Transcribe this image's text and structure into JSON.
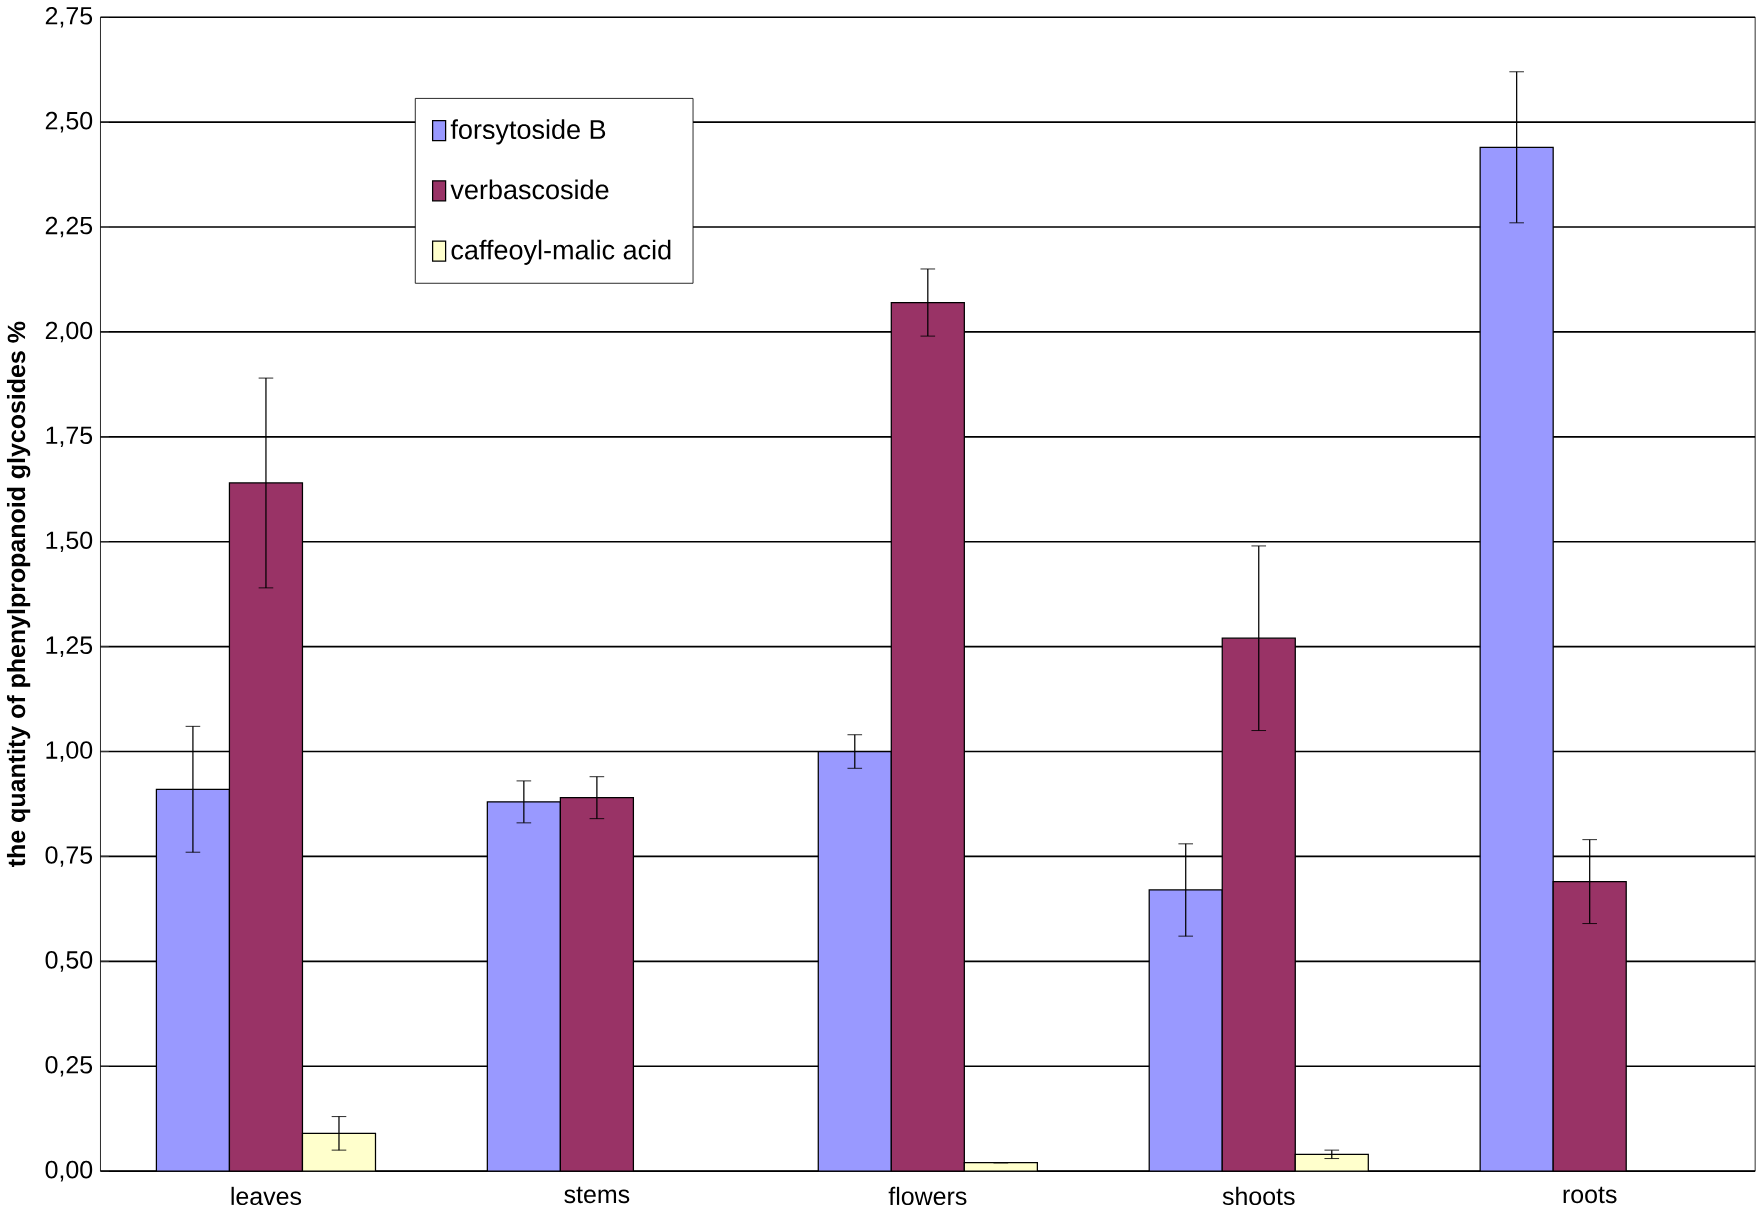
{
  "chart_data": {
    "type": "bar",
    "ylabel": "the quantity of phenylpropanoid glycosides  %",
    "categories": [
      "leaves",
      "stems",
      "flowers",
      "shoots",
      "roots"
    ],
    "series": [
      {
        "name": "forsytoside B",
        "color": "#9999ff",
        "values": [
          0.91,
          0.88,
          1.0,
          0.67,
          2.44
        ],
        "errors": [
          0.15,
          0.05,
          0.04,
          0.11,
          0.18
        ]
      },
      {
        "name": "verbascoside",
        "color": "#993366",
        "values": [
          1.64,
          0.89,
          2.07,
          1.27,
          0.69
        ],
        "errors": [
          0.25,
          0.05,
          0.08,
          0.22,
          0.1
        ]
      },
      {
        "name": "caffeoyl-malic acid",
        "color": "#ffffcc",
        "values": [
          0.09,
          null,
          0.02,
          0.04,
          null
        ],
        "errors": [
          0.04,
          null,
          null,
          0.01,
          null
        ]
      }
    ],
    "ylim": [
      0,
      2.75
    ],
    "yticks": [
      {
        "value": 0,
        "label": "0,00"
      },
      {
        "value": 0.25,
        "label": "0,25"
      },
      {
        "value": 0.5,
        "label": "0,50"
      },
      {
        "value": 0.75,
        "label": "0,75"
      },
      {
        "value": 1.0,
        "label": "1,00"
      },
      {
        "value": 1.25,
        "label": "1,25"
      },
      {
        "value": 1.5,
        "label": "1,50"
      },
      {
        "value": 1.75,
        "label": "1,75"
      },
      {
        "value": 2.0,
        "label": "2,00"
      },
      {
        "value": 2.25,
        "label": "2,25"
      },
      {
        "value": 2.5,
        "label": "2,50"
      },
      {
        "value": 2.75,
        "label": "2,75"
      }
    ],
    "grid": "y",
    "legend": "top left"
  }
}
